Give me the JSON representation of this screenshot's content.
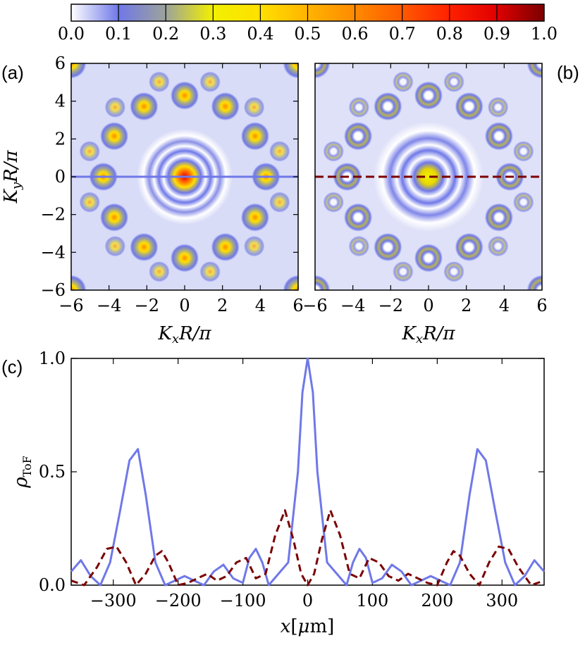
{
  "colorbar": {
    "ticks": [
      "0.0",
      "0.1",
      "0.2",
      "0.3",
      "0.4",
      "0.5",
      "0.6",
      "0.7",
      "0.8",
      "0.9",
      "1.0"
    ],
    "stops": [
      {
        "v": 0.0,
        "c": "#ffffff"
      },
      {
        "v": 0.1,
        "c": "#6f78e8"
      },
      {
        "v": 0.2,
        "c": "#9da39a"
      },
      {
        "v": 0.3,
        "c": "#f2f000"
      },
      {
        "v": 0.4,
        "c": "#ffe000"
      },
      {
        "v": 0.5,
        "c": "#ffb400"
      },
      {
        "v": 0.6,
        "c": "#ff8a00"
      },
      {
        "v": 0.7,
        "c": "#ff5a00"
      },
      {
        "v": 0.8,
        "c": "#ff2000"
      },
      {
        "v": 0.9,
        "c": "#e00000"
      },
      {
        "v": 1.0,
        "c": "#7a0000"
      }
    ]
  },
  "panel_a": {
    "label": "(a)",
    "xlabel": "K_xR/π",
    "ylabel": "K_yR/π",
    "xticks": [
      "−6",
      "−4",
      "−2",
      "0",
      "2",
      "4",
      "6"
    ],
    "yticks": [
      "6",
      "4",
      "2",
      "0",
      "−2",
      "−4",
      "−6"
    ],
    "colors": {
      "cut_line": "#6f78e8"
    }
  },
  "panel_b": {
    "label": "(b)",
    "xlabel": "K_xR/π",
    "xticks": [
      "−6",
      "−4",
      "−2",
      "0",
      "2",
      "4",
      "6"
    ],
    "colors": {
      "cut_line": "#7a0000"
    }
  },
  "chart_data": {
    "type": "line",
    "panel_label": "(c)",
    "xlabel": "x[μm]",
    "ylabel": "ρ_ToF",
    "xlim": [
      -365,
      365
    ],
    "ylim": [
      0,
      1.0
    ],
    "xticks": [
      "−300",
      "−200",
      "−100",
      "0",
      "100",
      "200",
      "300"
    ],
    "yticks": [
      "0.0",
      "0.5",
      "1.0"
    ],
    "series": [
      {
        "name": "solid",
        "color": "#6f78e8",
        "style": "solid",
        "x": [
          -365,
          -350,
          -335,
          -320,
          -305,
          -290,
          -275,
          -262,
          -250,
          -235,
          -220,
          -205,
          -190,
          -175,
          -160,
          -145,
          -130,
          -115,
          -100,
          -90,
          -80,
          -70,
          -60,
          -45,
          -30,
          -15,
          -8,
          0,
          8,
          15,
          30,
          45,
          60,
          70,
          80,
          90,
          100,
          115,
          130,
          145,
          160,
          175,
          190,
          205,
          220,
          235,
          250,
          262,
          275,
          290,
          305,
          320,
          335,
          350,
          365
        ],
        "y": [
          0.06,
          0.11,
          0.04,
          0.0,
          0.1,
          0.32,
          0.55,
          0.6,
          0.4,
          0.1,
          0.0,
          0.02,
          0.04,
          0.02,
          0.0,
          0.06,
          0.09,
          0.03,
          0.01,
          0.12,
          0.16,
          0.1,
          0.0,
          0.05,
          0.1,
          0.5,
          0.85,
          1.0,
          0.85,
          0.5,
          0.1,
          0.05,
          0.0,
          0.1,
          0.16,
          0.12,
          0.01,
          0.03,
          0.09,
          0.06,
          0.0,
          0.02,
          0.04,
          0.02,
          0.0,
          0.1,
          0.4,
          0.6,
          0.55,
          0.32,
          0.1,
          0.0,
          0.04,
          0.11,
          0.06
        ]
      },
      {
        "name": "dashed",
        "color": "#7a0000",
        "style": "dashed",
        "x": [
          -365,
          -345,
          -325,
          -310,
          -295,
          -280,
          -265,
          -250,
          -235,
          -225,
          -215,
          -200,
          -185,
          -170,
          -155,
          -140,
          -125,
          -110,
          -95,
          -80,
          -65,
          -50,
          -35,
          -22,
          -10,
          0,
          10,
          22,
          35,
          50,
          65,
          80,
          95,
          110,
          125,
          140,
          155,
          170,
          185,
          200,
          215,
          225,
          235,
          250,
          265,
          280,
          295,
          310,
          325,
          345,
          365
        ],
        "y": [
          0.02,
          0.0,
          0.08,
          0.16,
          0.17,
          0.1,
          0.0,
          0.05,
          0.13,
          0.15,
          0.1,
          0.0,
          0.01,
          0.03,
          0.05,
          0.02,
          0.04,
          0.1,
          0.12,
          0.03,
          0.05,
          0.22,
          0.33,
          0.2,
          0.05,
          0.0,
          0.05,
          0.2,
          0.33,
          0.22,
          0.05,
          0.03,
          0.12,
          0.1,
          0.04,
          0.02,
          0.05,
          0.03,
          0.01,
          0.0,
          0.1,
          0.15,
          0.13,
          0.05,
          0.0,
          0.1,
          0.17,
          0.16,
          0.08,
          0.0,
          0.02
        ]
      }
    ]
  }
}
